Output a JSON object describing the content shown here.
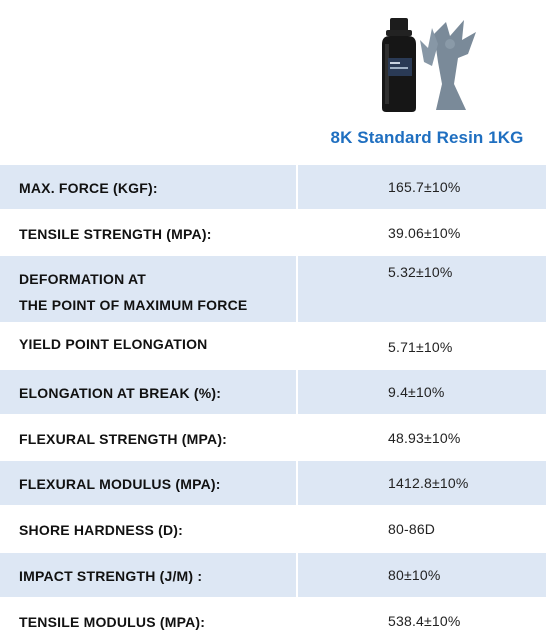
{
  "product": {
    "title": "8K Standard Resin 1KG",
    "image_icon": "resin-bottle-with-figurine-icon",
    "title_color": "#1f6fc0"
  },
  "colors": {
    "shaded_row": "#dde7f4",
    "white_row": "#ffffff"
  },
  "specs": [
    {
      "label": "MAX. FORCE (KGF):",
      "value": "165.7±10%"
    },
    {
      "label": "TENSILE STRENGTH (MPA):",
      "value": "39.06±10%"
    },
    {
      "label": "DEFORMATION AT\nTHE POINT OF  MAXIMUM FORCE",
      "value": "5.32±10%"
    },
    {
      "label": " YIELD POINT ELONGATION",
      "value": "5.71±10%"
    },
    {
      "label": "ELONGATION AT BREAK (%):",
      "value": "9.4±10%"
    },
    {
      "label": "FLEXURAL STRENGTH (MPA):",
      "value": "48.93±10%"
    },
    {
      "label": "FLEXURAL MODULUS (MPA):",
      "value": "1412.8±10%"
    },
    {
      "label": "SHORE HARDNESS (D):",
      "value": "80-86D"
    },
    {
      "label": "IMPACT STRENGTH (J/M) :",
      "value": "80±10%"
    },
    {
      "label": "TENSILE MODULUS (MPA):",
      "value": "538.4±10%"
    }
  ]
}
